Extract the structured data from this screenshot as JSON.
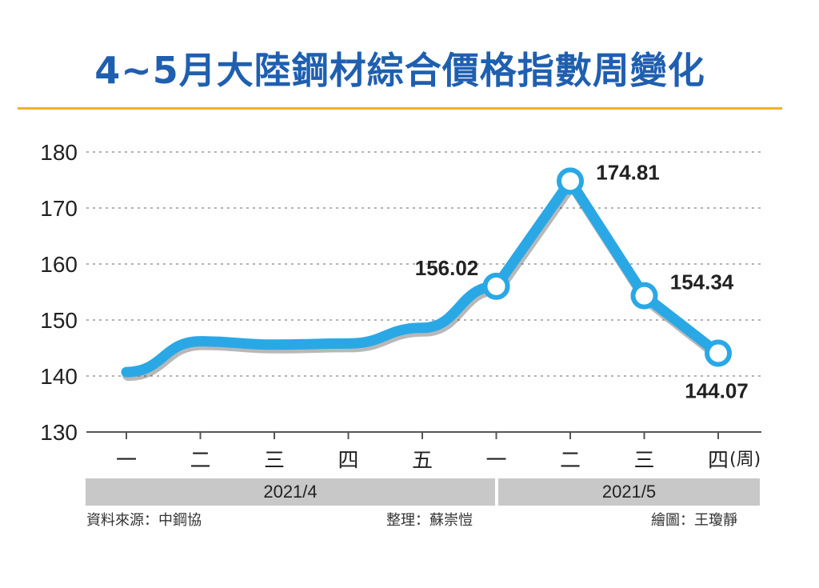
{
  "title": "4~5月大陸鋼材綜合價格指數周變化",
  "colors": {
    "title": "#1f5fb0",
    "rule": "#f2b41c",
    "line": "#2aa8e6",
    "band": "#c8c8c8"
  },
  "chart_data": {
    "type": "line",
    "title": "4~5月大陸鋼材綜合價格指數周變化",
    "xlabel": "",
    "ylabel": "",
    "categories": [
      "一",
      "二",
      "三",
      "四",
      "五",
      "一",
      "二",
      "三",
      "四"
    ],
    "x_unit": "(周)",
    "series": [
      {
        "values": [
          140.7,
          146.2,
          145.6,
          145.8,
          148.6,
          156.02,
          174.81,
          154.34,
          144.07
        ]
      }
    ],
    "data_labels": [
      {
        "index": 5,
        "text": "156.02"
      },
      {
        "index": 6,
        "text": "174.81"
      },
      {
        "index": 7,
        "text": "154.34"
      },
      {
        "index": 8,
        "text": "144.07"
      }
    ],
    "ylim": [
      130,
      180
    ],
    "yticks": [
      130,
      140,
      150,
      160,
      170,
      180
    ],
    "grid": true,
    "legend": "none",
    "groups": [
      {
        "label": "2021/4"
      },
      {
        "label": "2021/5"
      }
    ]
  },
  "footer": {
    "source": "資料來源：中鋼協",
    "editor": "整理：蘇崇愷",
    "artist": "繪圖：王瓊靜"
  }
}
